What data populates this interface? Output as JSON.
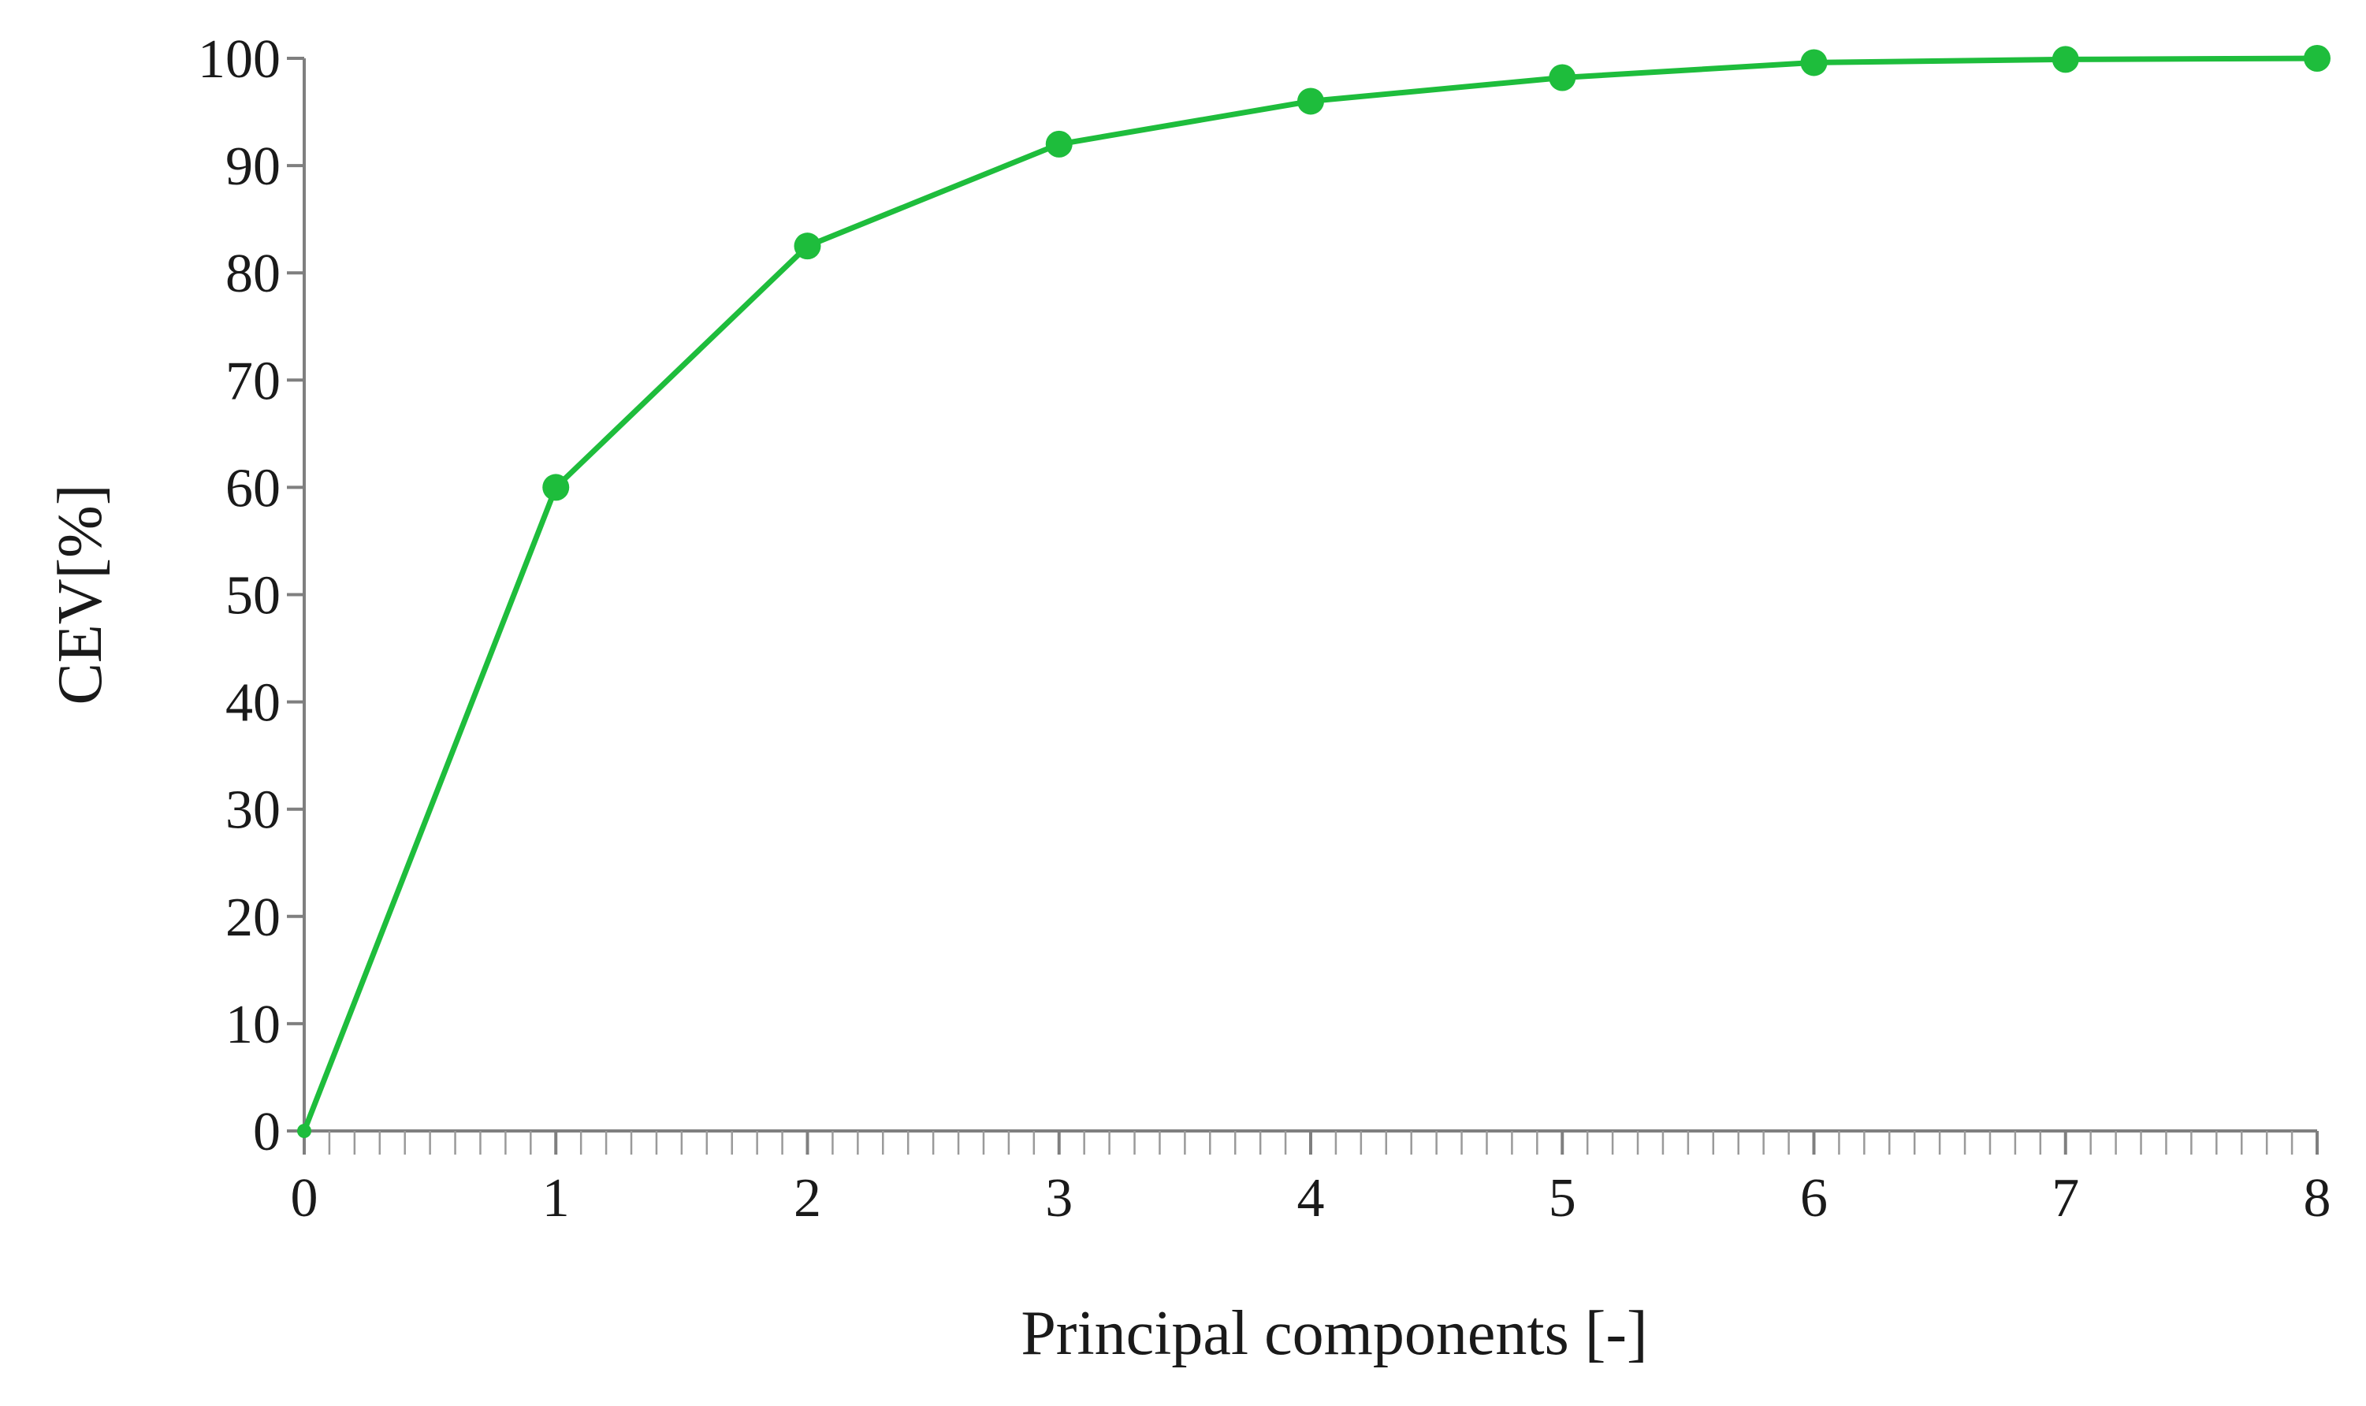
{
  "chart_data": {
    "type": "line",
    "xlabel": "Principal components [-]",
    "ylabel": "CEV[%]",
    "x": [
      0,
      1,
      2,
      3,
      4,
      5,
      6,
      7,
      8
    ],
    "series": [
      {
        "values": [
          0,
          60,
          82.5,
          92,
          96,
          98.2,
          99.6,
          99.9,
          100
        ],
        "color": "#1ebd3c",
        "marker": "circle"
      }
    ],
    "xlim": [
      0,
      8
    ],
    "ylim": [
      0,
      100
    ],
    "xticks": [
      0,
      1,
      2,
      3,
      4,
      5,
      6,
      7,
      8
    ],
    "xtick_labels": [
      "0",
      "1",
      "2",
      "3",
      "4",
      "5",
      "6",
      "7",
      "8"
    ],
    "yticks": [
      0,
      10,
      20,
      30,
      40,
      50,
      60,
      70,
      80,
      90,
      100
    ],
    "ytick_labels": [
      "0",
      "10",
      "20",
      "30",
      "40",
      "50",
      "60",
      "70",
      "80",
      "90",
      "100"
    ],
    "x_minor_ticks_per_major": 10,
    "grid": false,
    "legend": "none"
  }
}
